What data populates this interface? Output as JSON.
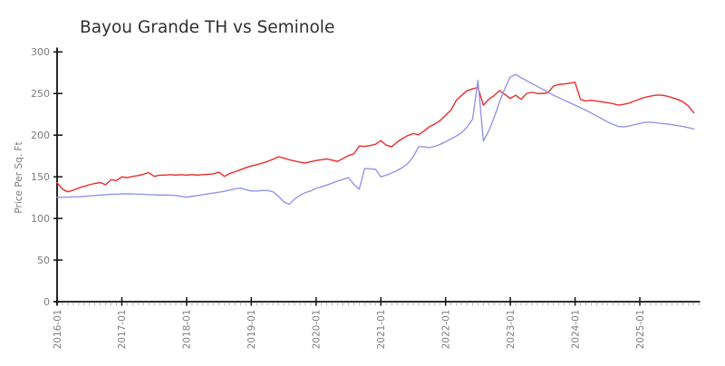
{
  "title": "Bayou Grande TH vs Seminole",
  "colors": {
    "series_red": "#ea2c2c",
    "series_blue": "#9695e4",
    "axis": "#111111",
    "tick_label": "#7d7d7d",
    "minor_tick": "#b5b5b5",
    "title_text": "#2f2f2f",
    "background": "#ffffff"
  },
  "chart_data": {
    "type": "line",
    "title": "Bayou Grande TH vs Seminole",
    "xlabel": "",
    "ylabel": "Price Per Sq. Ft",
    "ylim": [
      0,
      300
    ],
    "y_ticks": [
      0,
      50,
      100,
      150,
      200,
      250,
      300
    ],
    "x_tick_labels": [
      "2016-01",
      "2017-01",
      "2018-01",
      "2019-01",
      "2020-01",
      "2021-01",
      "2022-01",
      "2023-01",
      "2024-01",
      "2025-01"
    ],
    "x_tick_month_indices": [
      0,
      12,
      24,
      36,
      48,
      60,
      72,
      84,
      96,
      108
    ],
    "x_axis_months_span": 119,
    "grid": false,
    "legend": "none",
    "x_freq": "monthly",
    "x_start": "2016-01",
    "x_end": "2025-11",
    "x": [
      "2016-01",
      "2016-02",
      "2016-03",
      "2016-04",
      "2016-05",
      "2016-06",
      "2016-07",
      "2016-08",
      "2016-09",
      "2016-10",
      "2016-11",
      "2016-12",
      "2017-01",
      "2017-02",
      "2017-03",
      "2017-04",
      "2017-05",
      "2017-06",
      "2017-07",
      "2017-08",
      "2017-09",
      "2017-10",
      "2017-11",
      "2017-12",
      "2018-01",
      "2018-02",
      "2018-03",
      "2018-04",
      "2018-05",
      "2018-06",
      "2018-07",
      "2018-08",
      "2018-09",
      "2018-10",
      "2018-11",
      "2018-12",
      "2019-01",
      "2019-02",
      "2019-03",
      "2019-04",
      "2019-05",
      "2019-06",
      "2019-07",
      "2019-08",
      "2019-09",
      "2019-10",
      "2019-11",
      "2019-12",
      "2020-01",
      "2020-02",
      "2020-03",
      "2020-04",
      "2020-05",
      "2020-06",
      "2020-07",
      "2020-08",
      "2020-09",
      "2020-10",
      "2020-11",
      "2020-12",
      "2021-01",
      "2021-02",
      "2021-03",
      "2021-04",
      "2021-05",
      "2021-06",
      "2021-07",
      "2021-08",
      "2021-09",
      "2021-10",
      "2021-11",
      "2021-12",
      "2022-01",
      "2022-02",
      "2022-03",
      "2022-04",
      "2022-05",
      "2022-06",
      "2022-07",
      "2022-08",
      "2022-09",
      "2022-10",
      "2022-11",
      "2022-12",
      "2023-01",
      "2023-02",
      "2023-03",
      "2023-04",
      "2023-05",
      "2023-06",
      "2023-07",
      "2023-08",
      "2023-09",
      "2023-10",
      "2023-11",
      "2023-12",
      "2024-01",
      "2024-02",
      "2024-03",
      "2024-04",
      "2024-05",
      "2024-06",
      "2024-07",
      "2024-08",
      "2024-09",
      "2024-10",
      "2024-11",
      "2024-12",
      "2025-01",
      "2025-02",
      "2025-03",
      "2025-04",
      "2025-05",
      "2025-06",
      "2025-07",
      "2025-08",
      "2025-09",
      "2025-10",
      "2025-11"
    ],
    "series": [
      {
        "name": "Bayou Grande TH",
        "color": "#ea2c2c",
        "values": [
          143,
          135,
          132,
          134,
          136.5,
          138.5,
          140.5,
          142,
          143,
          140.5,
          146.5,
          145.5,
          150,
          149,
          150.5,
          151.5,
          153,
          155,
          150.5,
          152,
          152,
          152.5,
          152,
          152.5,
          152,
          152.5,
          152,
          152.5,
          153,
          153.5,
          155.5,
          150.5,
          154,
          156,
          158.5,
          161,
          163,
          164.5,
          166.5,
          168.5,
          171,
          174,
          172.5,
          170.5,
          169,
          167.5,
          166.5,
          168,
          169.5,
          170.5,
          171.5,
          170,
          168.5,
          172,
          175.5,
          177.5,
          187,
          186.5,
          187.5,
          189,
          193.5,
          188,
          186,
          191.5,
          196,
          199.5,
          202,
          200.5,
          205,
          210,
          213.5,
          217.5,
          224,
          230,
          242,
          248,
          253.5,
          255.5,
          257.5,
          236,
          243,
          247.5,
          253.5,
          249,
          244,
          248,
          243,
          250,
          251.5,
          250,
          250,
          251,
          259,
          261,
          261.5,
          262.5,
          263.5,
          243,
          241,
          242,
          241,
          240,
          239,
          238,
          236,
          237,
          238.5,
          241,
          243.5,
          245.5,
          247,
          248,
          248,
          247,
          245,
          243,
          240,
          235,
          227
        ]
      },
      {
        "name": "Seminole",
        "color": "#9695e4",
        "values": [
          125.5,
          125.5,
          125.5,
          126,
          126,
          126.5,
          127,
          127.5,
          128,
          128.5,
          129,
          129,
          129.5,
          129.5,
          129.5,
          129,
          129,
          128.5,
          128.5,
          128,
          128,
          128,
          127.5,
          126.5,
          125.5,
          126.5,
          127.5,
          128.5,
          129.5,
          130.5,
          131.5,
          132.5,
          134,
          135.5,
          136.5,
          134.5,
          133,
          133,
          133.5,
          133.5,
          132,
          127,
          120,
          117,
          123,
          128,
          131,
          133,
          136,
          138,
          140,
          142.5,
          145,
          147,
          149,
          141,
          135,
          160,
          159.5,
          159,
          150,
          152,
          154.5,
          157.5,
          161,
          166,
          174,
          186,
          186,
          185,
          186.5,
          189,
          192,
          195.5,
          199,
          203,
          210,
          219,
          266,
          193,
          205,
          221,
          240,
          256,
          270,
          273,
          269,
          265.5,
          262,
          258.5,
          255,
          251.5,
          248,
          245,
          242,
          239,
          236,
          233,
          230,
          226.5,
          223,
          219.5,
          216,
          213,
          210.5,
          210,
          211,
          212.5,
          214,
          215.5,
          215.5,
          215,
          214,
          213.5,
          212.5,
          211.5,
          210.5,
          209,
          207.5
        ]
      }
    ]
  }
}
